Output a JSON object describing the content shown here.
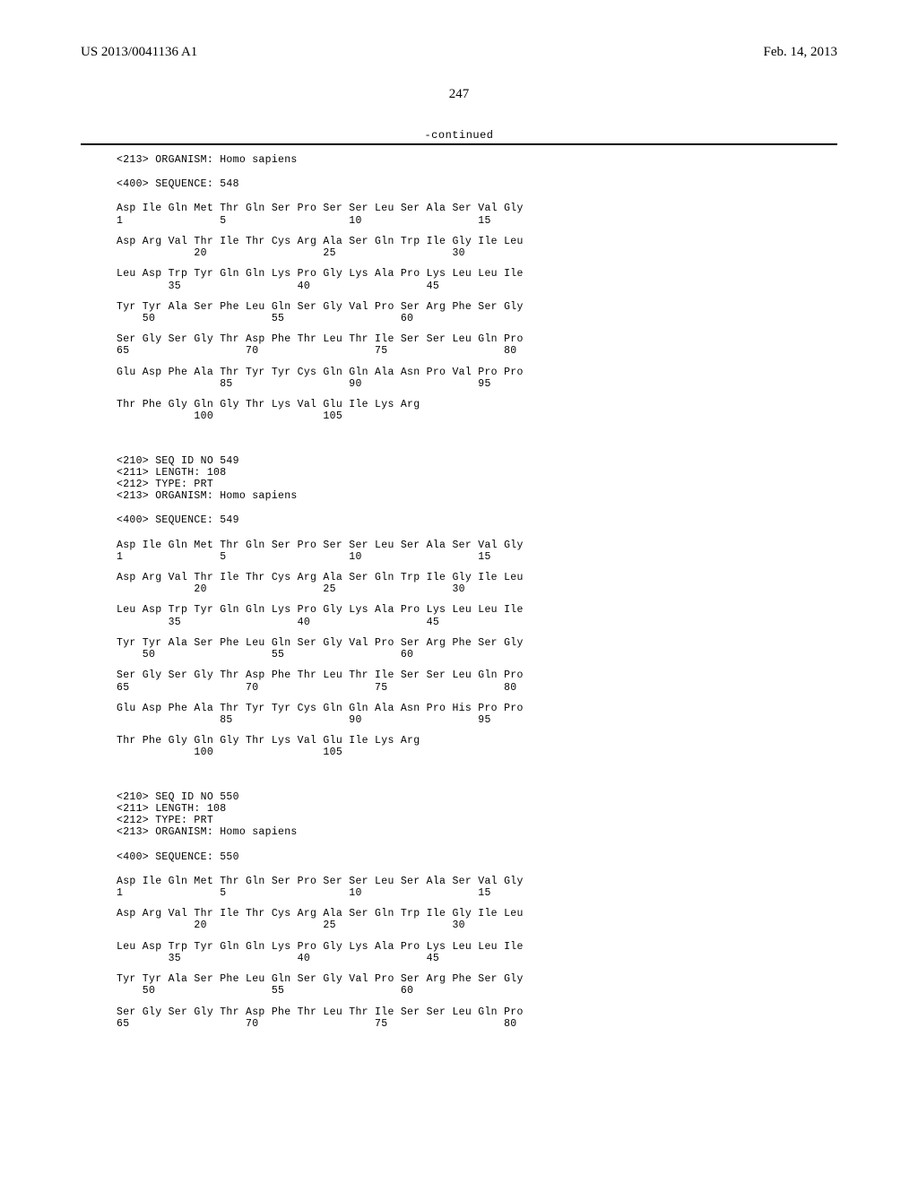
{
  "header": {
    "pub_no": "US 2013/0041136 A1",
    "pub_date": "Feb. 14, 2013"
  },
  "page_number": "247",
  "continued_label": "-continued",
  "colors": {
    "text": "#000000",
    "background": "#ffffff",
    "rule": "#000000"
  },
  "fonts": {
    "body_family": "Times New Roman",
    "mono_family": "Courier New",
    "header_size_pt": 11,
    "mono_size_pt": 8.5
  },
  "blocks": [
    {
      "pre_meta": [
        "<213> ORGANISM: Homo sapiens"
      ],
      "seq_header": "<400> SEQUENCE: 548",
      "rows": [
        {
          "aa": "Asp Ile Gln Met Thr Gln Ser Pro Ser Ser Leu Ser Ala Ser Val Gly",
          "num": "1               5                   10                  15"
        },
        {
          "aa": "Asp Arg Val Thr Ile Thr Cys Arg Ala Ser Gln Trp Ile Gly Ile Leu",
          "num": "            20                  25                  30"
        },
        {
          "aa": "Leu Asp Trp Tyr Gln Gln Lys Pro Gly Lys Ala Pro Lys Leu Leu Ile",
          "num": "        35                  40                  45"
        },
        {
          "aa": "Tyr Tyr Ala Ser Phe Leu Gln Ser Gly Val Pro Ser Arg Phe Ser Gly",
          "num": "    50                  55                  60"
        },
        {
          "aa": "Ser Gly Ser Gly Thr Asp Phe Thr Leu Thr Ile Ser Ser Leu Gln Pro",
          "num": "65                  70                  75                  80"
        },
        {
          "aa": "Glu Asp Phe Ala Thr Tyr Tyr Cys Gln Gln Ala Asn Pro Val Pro Pro",
          "num": "                85                  90                  95"
        },
        {
          "aa": "Thr Phe Gly Gln Gly Thr Lys Val Glu Ile Lys Arg",
          "num": "            100                 105"
        }
      ]
    },
    {
      "pre_meta": [
        "<210> SEQ ID NO 549",
        "<211> LENGTH: 108",
        "<212> TYPE: PRT",
        "<213> ORGANISM: Homo sapiens"
      ],
      "seq_header": "<400> SEQUENCE: 549",
      "rows": [
        {
          "aa": "Asp Ile Gln Met Thr Gln Ser Pro Ser Ser Leu Ser Ala Ser Val Gly",
          "num": "1               5                   10                  15"
        },
        {
          "aa": "Asp Arg Val Thr Ile Thr Cys Arg Ala Ser Gln Trp Ile Gly Ile Leu",
          "num": "            20                  25                  30"
        },
        {
          "aa": "Leu Asp Trp Tyr Gln Gln Lys Pro Gly Lys Ala Pro Lys Leu Leu Ile",
          "num": "        35                  40                  45"
        },
        {
          "aa": "Tyr Tyr Ala Ser Phe Leu Gln Ser Gly Val Pro Ser Arg Phe Ser Gly",
          "num": "    50                  55                  60"
        },
        {
          "aa": "Ser Gly Ser Gly Thr Asp Phe Thr Leu Thr Ile Ser Ser Leu Gln Pro",
          "num": "65                  70                  75                  80"
        },
        {
          "aa": "Glu Asp Phe Ala Thr Tyr Tyr Cys Gln Gln Ala Asn Pro His Pro Pro",
          "num": "                85                  90                  95"
        },
        {
          "aa": "Thr Phe Gly Gln Gly Thr Lys Val Glu Ile Lys Arg",
          "num": "            100                 105"
        }
      ]
    },
    {
      "pre_meta": [
        "<210> SEQ ID NO 550",
        "<211> LENGTH: 108",
        "<212> TYPE: PRT",
        "<213> ORGANISM: Homo sapiens"
      ],
      "seq_header": "<400> SEQUENCE: 550",
      "rows": [
        {
          "aa": "Asp Ile Gln Met Thr Gln Ser Pro Ser Ser Leu Ser Ala Ser Val Gly",
          "num": "1               5                   10                  15"
        },
        {
          "aa": "Asp Arg Val Thr Ile Thr Cys Arg Ala Ser Gln Trp Ile Gly Ile Leu",
          "num": "            20                  25                  30"
        },
        {
          "aa": "Leu Asp Trp Tyr Gln Gln Lys Pro Gly Lys Ala Pro Lys Leu Leu Ile",
          "num": "        35                  40                  45"
        },
        {
          "aa": "Tyr Tyr Ala Ser Phe Leu Gln Ser Gly Val Pro Ser Arg Phe Ser Gly",
          "num": "    50                  55                  60"
        },
        {
          "aa": "Ser Gly Ser Gly Thr Asp Phe Thr Leu Thr Ile Ser Ser Leu Gln Pro",
          "num": "65                  70                  75                  80"
        }
      ]
    }
  ]
}
